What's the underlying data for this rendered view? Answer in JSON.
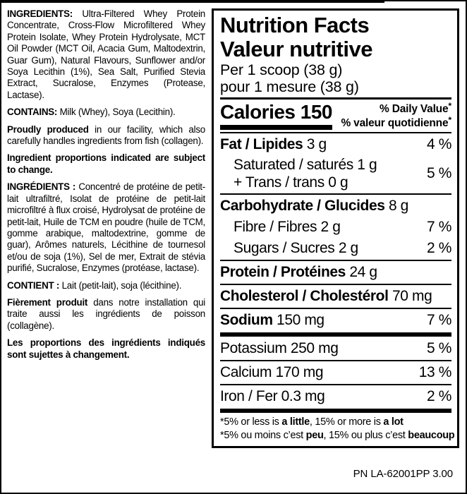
{
  "left_panel": {
    "paragraphs": [
      {
        "name": "ingredients-en",
        "parts": [
          {
            "b": 1,
            "t": "INGREDIENTS: "
          },
          {
            "t": "Ultra-Filtered Whey Protein Concentrate, Cross-Flow Microfiltered Whey Protein Isolate, Whey Protein Hydrolysate, MCT Oil Powder (MCT Oil, Acacia Gum, Maltodextrin, Guar Gum), Natural Flavours, Sunflower and/or Soya Lecithin (1%), Sea Salt, Purified Stevia Extract, Sucralose, Enzymes (Protease, Lactase)."
          }
        ]
      },
      {
        "name": "contains-en",
        "parts": [
          {
            "b": 1,
            "t": "CONTAINS: "
          },
          {
            "t": "Milk (Whey), Soya (Lecithin)."
          }
        ]
      },
      {
        "name": "facility-statement-en",
        "parts": [
          {
            "b": 1,
            "t": "Proudly produced "
          },
          {
            "t": "in our facility, which also carefully handles ingredients from fish (collagen)."
          }
        ]
      },
      {
        "name": "proportions-statement-en",
        "parts": [
          {
            "b": 1,
            "t": "Ingredient proportions indicated are subject to change."
          }
        ]
      },
      {
        "name": "ingredients-fr",
        "parts": [
          {
            "b": 1,
            "t": "INGRÉDIENTS : "
          },
          {
            "t": "Concentré de protéine de petit-lait ultrafiltré, Isolat de protéine de petit-lait microfiltré à flux croisé, Hydrolysat de protéine de petit-lait, Huile de TCM en poudre (huile de TCM, gomme arabique, maltodextrine, gomme de guar), Arômes naturels, Lécithine de tournesol et/ou de soja (1%), Sel de mer, Extrait de stévia purifié, Sucralose, Enzymes (protéase, lactase)."
          }
        ]
      },
      {
        "name": "contains-fr",
        "parts": [
          {
            "b": 1,
            "t": "CONTIENT : "
          },
          {
            "t": "Lait (petit-lait), soja (lécithine)."
          }
        ]
      },
      {
        "name": "facility-statement-fr",
        "parts": [
          {
            "b": 1,
            "t": "Fièrement produit "
          },
          {
            "t": "dans notre installation qui traite aussi les ingrédients de poisson (collagène)."
          }
        ]
      },
      {
        "name": "proportions-statement-fr",
        "parts": [
          {
            "b": 1,
            "t": "Les proportions des ingrédients indiqués sont sujettes à changement."
          }
        ]
      }
    ]
  },
  "nutrition": {
    "title_en": "Nutrition Facts",
    "title_fr": "Valeur nutritive",
    "serving_en": "Per 1 scoop (38 g)",
    "serving_fr": "pour 1 mesure (38 g)",
    "calories_label": "Calories 150",
    "daily_value_lines": [
      {
        "name": "daily-value-header-en",
        "parts": [
          {
            "t": "% Daily Value"
          },
          {
            "sup": 1,
            "t": "*"
          }
        ]
      },
      {
        "name": "daily-value-header-fr",
        "parts": [
          {
            "t": "% valeur quotidienne"
          },
          {
            "sup": 1,
            "t": "*"
          }
        ]
      }
    ],
    "rows": [
      {
        "kind": "main",
        "name": "fat",
        "bold": "Fat / Lipides",
        "rest": "3 g",
        "percent": "4 %"
      },
      {
        "kind": "subgroup",
        "name": "saturated-trans",
        "lines": [
          "Saturated / saturés 1 g",
          "+ Trans / trans 0 g"
        ],
        "percent": "5 %"
      },
      {
        "kind": "sep"
      },
      {
        "kind": "main",
        "name": "carbohydrate",
        "bold": "Carbohydrate / Glucides",
        "rest": "8 g"
      },
      {
        "kind": "sub",
        "name": "fibre",
        "text": "Fibre / Fibres 2 g",
        "percent": "7 %"
      },
      {
        "kind": "sub",
        "name": "sugars",
        "text": "Sugars / Sucres 2 g",
        "percent": "2 %"
      },
      {
        "kind": "sep"
      },
      {
        "kind": "main",
        "name": "protein",
        "bold": "Protein / Protéines",
        "rest": "24 g"
      },
      {
        "kind": "sep"
      },
      {
        "kind": "main",
        "name": "cholesterol",
        "bold": "Cholesterol / Cholestérol",
        "rest": "70 mg"
      },
      {
        "kind": "sep"
      },
      {
        "kind": "main",
        "name": "sodium",
        "bold": "Sodium",
        "rest": "150 mg",
        "percent": "7 %"
      },
      {
        "kind": "thick"
      },
      {
        "kind": "plain",
        "name": "potassium",
        "text": "Potassium 250 mg",
        "percent": "5 %"
      },
      {
        "kind": "sep"
      },
      {
        "kind": "plain",
        "name": "calcium",
        "text": "Calcium 170 mg",
        "percent": "13 %"
      },
      {
        "kind": "sep"
      },
      {
        "kind": "plain",
        "name": "iron",
        "text": "Iron / Fer 0.3 mg",
        "percent": "2 %"
      },
      {
        "kind": "thick"
      }
    ],
    "footnotes": [
      {
        "name": "footnote-en",
        "parts": [
          {
            "t": "*5% or less is "
          },
          {
            "b": 1,
            "t": "a little"
          },
          {
            "t": ", 15% or more is "
          },
          {
            "b": 1,
            "t": "a lot"
          }
        ]
      },
      {
        "name": "footnote-fr",
        "parts": [
          {
            "t": "*5% ou moins c’est "
          },
          {
            "b": 1,
            "t": "peu"
          },
          {
            "t": ", 15% ou plus c’est "
          },
          {
            "b": 1,
            "t": "beaucoup"
          }
        ]
      }
    ]
  },
  "footer": {
    "product_code": "PN LA-62001PP 3.00"
  },
  "colors": {
    "ink": "#000000",
    "background": "#ffffff"
  }
}
